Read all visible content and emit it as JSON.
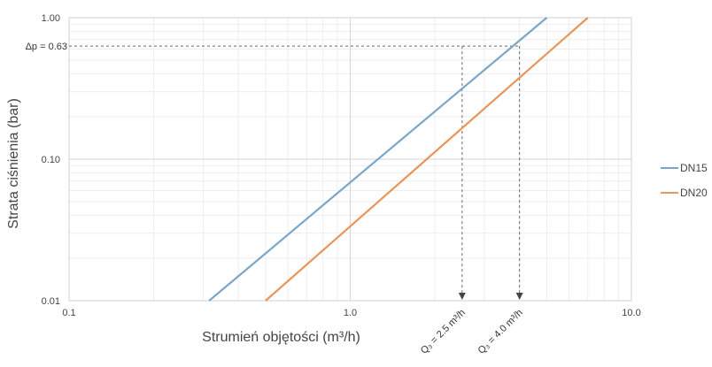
{
  "chart_data": {
    "type": "line",
    "xscale": "log",
    "yscale": "log",
    "xlim": [
      0.1,
      10.0
    ],
    "ylim": [
      0.01,
      1.0
    ],
    "xlabel": "Strumień objętości (m³/h)",
    "ylabel": "Strata ciśnienia (bar)",
    "x_ticks": [
      "0.1",
      "1.0",
      "10.0"
    ],
    "y_ticks": [
      "0.01",
      "0.10",
      "1.00"
    ],
    "grid": true,
    "legend_position": "right",
    "series": [
      {
        "name": "DN15",
        "color": "#7aa6c8",
        "x": [
          0.315,
          5.0
        ],
        "y": [
          0.01,
          1.0
        ]
      },
      {
        "name": "DN20",
        "color": "#e8955a",
        "x": [
          0.5,
          7.0
        ],
        "y": [
          0.01,
          1.0
        ]
      }
    ],
    "annotations": {
      "dp_label": "Δp = 0.63",
      "dp_value": 0.63,
      "q3_dn15": {
        "text": "Q₃ = 2.5 m³/h",
        "x": 2.5
      },
      "q3_dn20": {
        "text": "Q₃ = 4.0 m³/h",
        "x": 4.0
      }
    }
  }
}
